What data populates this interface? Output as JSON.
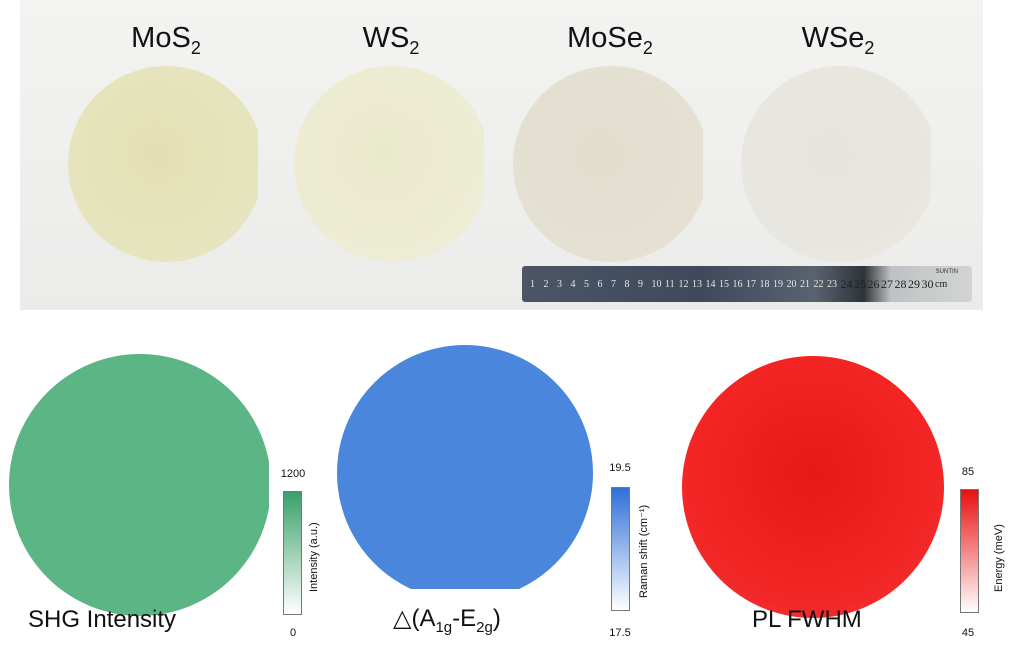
{
  "wafers": [
    {
      "label": "MoS",
      "sub": "2",
      "color": "#e7e5bd"
    },
    {
      "label": "WS",
      "sub": "2",
      "color": "#edecd2"
    },
    {
      "label": "MoSe",
      "sub": "2",
      "color": "#e4dfd0"
    },
    {
      "label": "WSe",
      "sub": "2",
      "color": "#e8e6df"
    }
  ],
  "ruler": {
    "ticks": [
      "1",
      "2",
      "3",
      "4",
      "5",
      "6",
      "7",
      "8",
      "9",
      "10",
      "11",
      "12",
      "13",
      "14",
      "15",
      "16",
      "17",
      "18",
      "19",
      "20",
      "21",
      "22",
      "23",
      "24",
      "25",
      "26",
      "27",
      "28",
      "29",
      "30"
    ],
    "unit": "cm",
    "brand": "SUNTIN"
  },
  "maps": [
    {
      "caption": "SHG Intensity",
      "color": "#5cb584",
      "cbar_label": "Intensity (a.u.)",
      "max": "1200",
      "min": "0"
    },
    {
      "caption_prefix": "△(A",
      "caption_sub1": "1g",
      "caption_mid": "-E",
      "caption_sub2": "2g",
      "caption_suffix": ")",
      "color": "#4a87dc",
      "cbar_label": "Raman shift (cm⁻¹)",
      "max": "19.5",
      "min": "17.5"
    },
    {
      "caption": "PL FWHM",
      "color": "#f02020",
      "cbar_label": "Energy (meV)",
      "max": "85",
      "min": "45"
    }
  ]
}
